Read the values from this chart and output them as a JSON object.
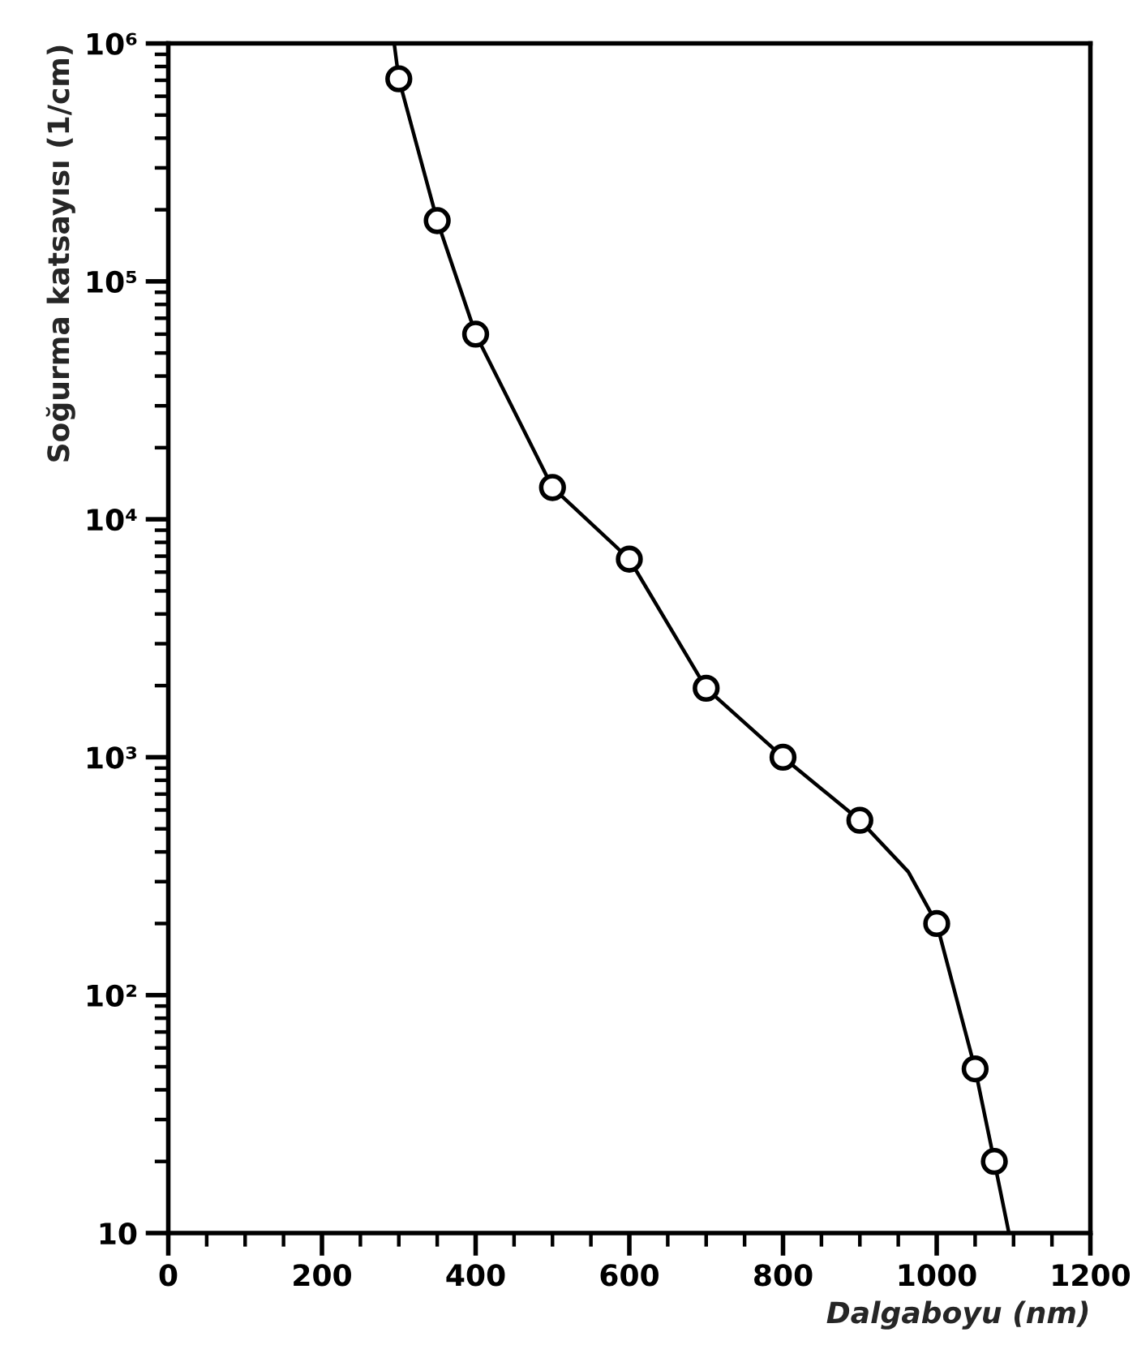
{
  "chart_data": {
    "type": "line",
    "xlabel": "Dalgaboyu (nm)",
    "ylabel": "Soğurma katsayısı (1/cm)",
    "log": "y",
    "xlim": [
      0,
      1200
    ],
    "xticks": [
      0,
      {
        "value": 50,
        "label": null
      },
      {
        "value": 100,
        "label": null
      },
      {
        "value": 150,
        "label": null
      },
      200,
      {
        "value": 250,
        "label": null
      },
      {
        "value": 300,
        "label": null
      },
      {
        "value": 350,
        "label": null
      },
      400,
      {
        "value": 450,
        "label": null
      },
      {
        "value": 500,
        "label": null
      },
      {
        "value": 550,
        "label": null
      },
      600,
      {
        "value": 650,
        "label": null
      },
      {
        "value": 700,
        "label": null
      },
      {
        "value": 750,
        "label": null
      },
      800,
      {
        "value": 850,
        "label": null
      },
      {
        "value": 900,
        "label": null
      },
      {
        "value": 950,
        "label": null
      },
      1000,
      {
        "value": 1050,
        "label": null
      },
      {
        "value": 1100,
        "label": null
      },
      {
        "value": 1150,
        "label": null
      },
      1200
    ],
    "ylim": [
      10,
      1000000
    ],
    "yticks": [
      {
        "value": 10,
        "label": "10"
      },
      {
        "value": 20,
        "label": null
      },
      {
        "value": 30,
        "label": null
      },
      {
        "value": 40,
        "label": null
      },
      {
        "value": 50,
        "label": null
      },
      {
        "value": 60,
        "label": null
      },
      {
        "value": 70,
        "label": null
      },
      {
        "value": 80,
        "label": null
      },
      {
        "value": 90,
        "label": null
      },
      {
        "value": 100,
        "label": "10²"
      },
      {
        "value": 200,
        "label": null
      },
      {
        "value": 300,
        "label": null
      },
      {
        "value": 400,
        "label": null
      },
      {
        "value": 500,
        "label": null
      },
      {
        "value": 600,
        "label": null
      },
      {
        "value": 700,
        "label": null
      },
      {
        "value": 800,
        "label": null
      },
      {
        "value": 900,
        "label": null
      },
      {
        "value": 1000,
        "label": "10³"
      },
      {
        "value": 2000,
        "label": null
      },
      {
        "value": 3000,
        "label": null
      },
      {
        "value": 4000,
        "label": null
      },
      {
        "value": 5000,
        "label": null
      },
      {
        "value": 6000,
        "label": null
      },
      {
        "value": 7000,
        "label": null
      },
      {
        "value": 8000,
        "label": null
      },
      {
        "value": 9000,
        "label": null
      },
      {
        "value": 10000,
        "label": "10⁴"
      },
      {
        "value": 20000,
        "label": null
      },
      {
        "value": 30000,
        "label": null
      },
      {
        "value": 40000,
        "label": null
      },
      {
        "value": 50000,
        "label": null
      },
      {
        "value": 60000,
        "label": null
      },
      {
        "value": 70000,
        "label": null
      },
      {
        "value": 80000,
        "label": null
      },
      {
        "value": 90000,
        "label": null
      },
      {
        "value": 100000,
        "label": "10⁵"
      },
      {
        "value": 200000,
        "label": null
      },
      {
        "value": 300000,
        "label": null
      },
      {
        "value": 400000,
        "label": null
      },
      {
        "value": 500000,
        "label": null
      },
      {
        "value": 600000,
        "label": null
      },
      {
        "value": 700000,
        "label": null
      },
      {
        "value": 800000,
        "label": null
      },
      {
        "value": 900000,
        "label": null
      },
      {
        "value": 1000000,
        "label": "10⁶"
      }
    ],
    "grid": false,
    "series": [
      {
        "type": "line",
        "color": "#000000",
        "marker": "none",
        "x": [
          294,
          300,
          350,
          400,
          500,
          600,
          700,
          800,
          900,
          963,
          1000,
          1050,
          1075,
          1094
        ],
        "values": [
          1000000,
          710000,
          180000,
          60000,
          13600,
          6800,
          1950,
          1000,
          543,
          330,
          200,
          49,
          20,
          10
        ]
      },
      {
        "type": "scatter",
        "color": "#000000",
        "marker": "circle",
        "x": [
          300,
          350,
          400,
          500,
          600,
          700,
          800,
          900,
          1000,
          1050,
          1075
        ],
        "values": [
          710000,
          180000,
          60000,
          13600,
          6800,
          1950,
          1000,
          543,
          200,
          49,
          20
        ]
      }
    ]
  }
}
